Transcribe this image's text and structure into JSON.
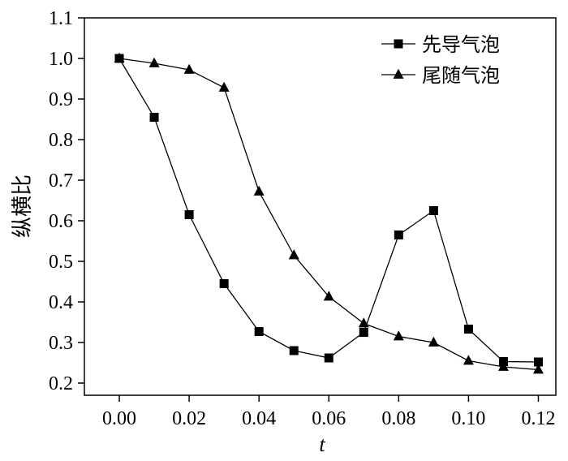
{
  "chart_data": {
    "type": "line",
    "xlabel": "t",
    "ylabel": "纵横比",
    "xlim": [
      -0.01,
      0.125
    ],
    "ylim": [
      0.17,
      1.1
    ],
    "x_ticks": [
      "0.00",
      "0.02",
      "0.04",
      "0.06",
      "0.08",
      "0.10",
      "0.12"
    ],
    "y_ticks": [
      "0.2",
      "0.3",
      "0.4",
      "0.5",
      "0.6",
      "0.7",
      "0.8",
      "0.9",
      "1.0",
      "1.1"
    ],
    "legend_position": "top-right",
    "x": [
      0.0,
      0.01,
      0.02,
      0.03,
      0.04,
      0.05,
      0.06,
      0.07,
      0.08,
      0.09,
      0.1,
      0.11,
      0.12
    ],
    "series": [
      {
        "name": "先导气泡",
        "marker": "square",
        "values": [
          1.0,
          0.855,
          0.615,
          0.445,
          0.327,
          0.28,
          0.262,
          0.325,
          0.565,
          0.625,
          0.333,
          0.253,
          0.252
        ]
      },
      {
        "name": "尾随气泡",
        "marker": "triangle",
        "values": [
          1.0,
          0.988,
          0.972,
          0.928,
          0.672,
          0.515,
          0.413,
          0.347,
          0.315,
          0.3,
          0.255,
          0.24,
          0.233
        ]
      }
    ]
  }
}
